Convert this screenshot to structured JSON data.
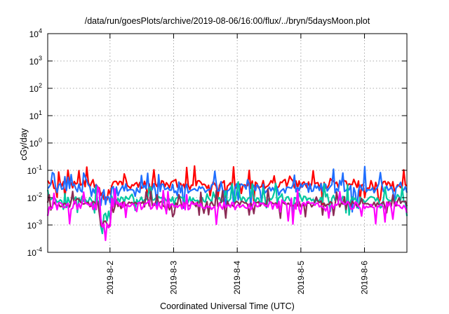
{
  "chart_data": {
    "type": "line",
    "title": "/data/run/goesPlots/archive/2019-08-06/16:00/flux/../bryn/5daysMoon.plot",
    "xlabel": "Coordinated Universal Time (UTC)",
    "ylabel": "cGy/day",
    "y_scale": "log",
    "ylim": [
      0.0001,
      10000
    ],
    "y_ticks": [
      {
        "base": "10",
        "exp": "-4"
      },
      {
        "base": "10",
        "exp": "-3"
      },
      {
        "base": "10",
        "exp": "-2"
      },
      {
        "base": "10",
        "exp": "-1"
      },
      {
        "base": "10",
        "exp": "0"
      },
      {
        "base": "10",
        "exp": "1"
      },
      {
        "base": "10",
        "exp": "2"
      },
      {
        "base": "10",
        "exp": "3"
      },
      {
        "base": "10",
        "exp": "4"
      }
    ],
    "x_start": "2019-08-01T00:30",
    "x_end": "2019-08-06T16:00",
    "x_ticks": [
      "2019-8-2",
      "2019-8-3",
      "2019-8-4",
      "2019-8-5",
      "2019-8-6"
    ],
    "grid": true,
    "legend": "none",
    "series": [
      {
        "color": "#ff0000",
        "base": 0.03,
        "noise": 0.3,
        "spike": 1.4
      },
      {
        "color": "#1f6fff",
        "base": 0.022,
        "noise": 0.35,
        "spike": 1.6
      },
      {
        "color": "#00c8a0",
        "base": 0.0085,
        "noise": 0.25,
        "spike": 1.3
      },
      {
        "color": "#8b2b55",
        "base": 0.0058,
        "noise": 0.22,
        "spike": 1.2
      },
      {
        "color": "#ff00ff",
        "base": 0.005,
        "noise": 0.3,
        "spike": 1.5
      }
    ]
  }
}
